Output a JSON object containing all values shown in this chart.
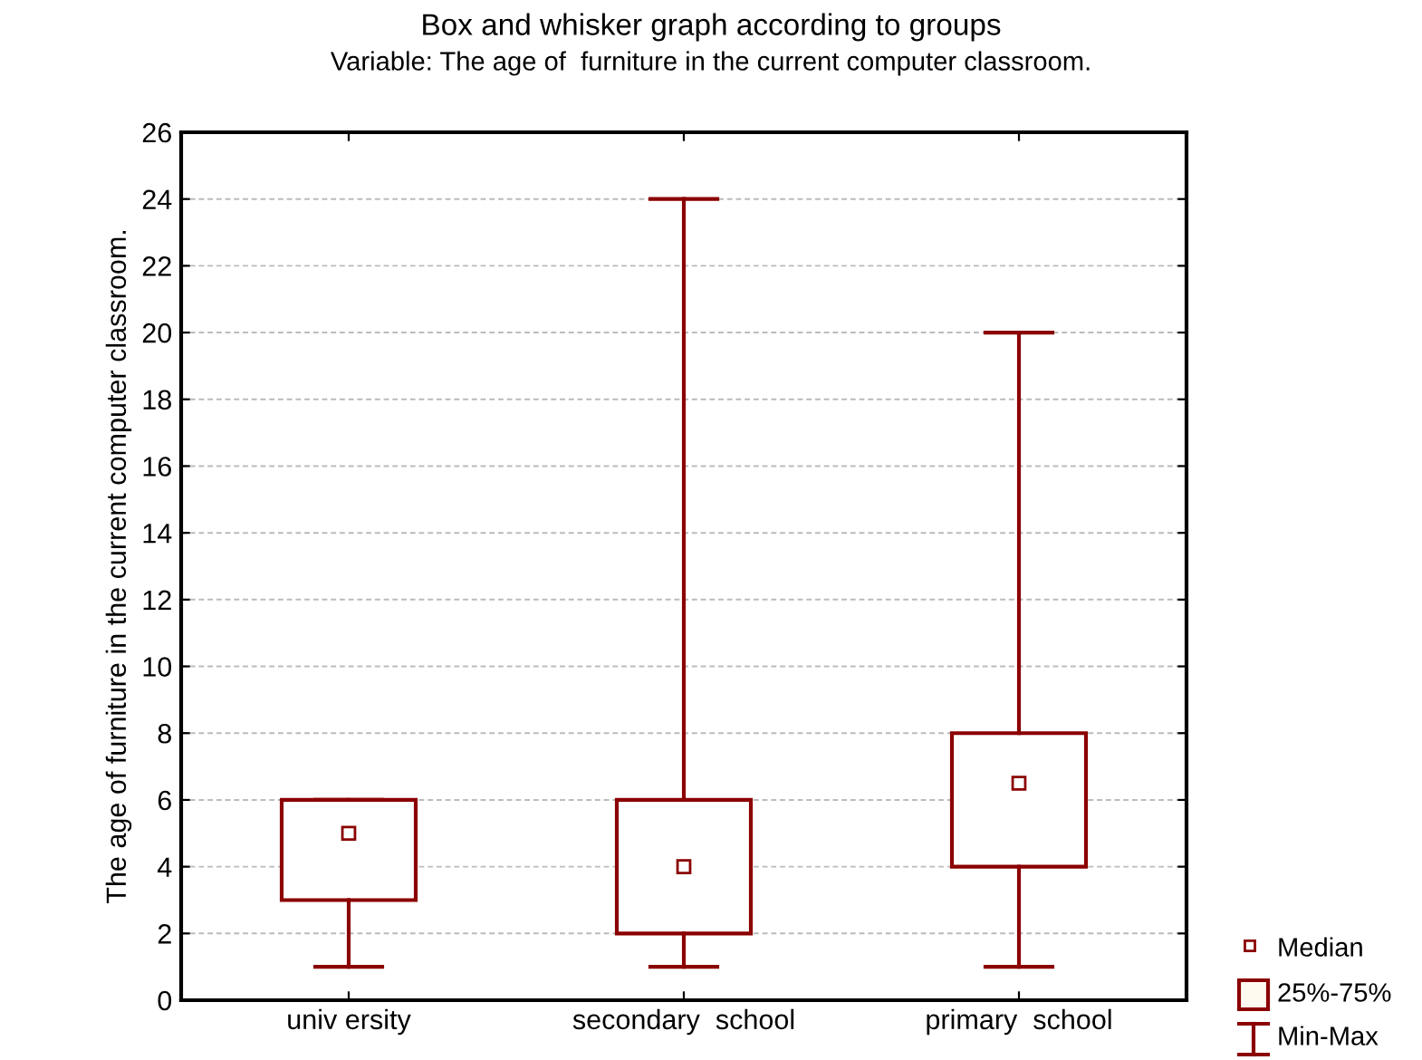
{
  "chart_data": {
    "type": "box",
    "title": "Box and whisker graph according to groups",
    "subtitle": "Variable: The age of  furniture in the current computer classroom.",
    "ylabel": "The age of furniture in the current computer classroom.",
    "categories": [
      "univ ersity",
      "secondary  school",
      "primary  school"
    ],
    "boxes": [
      {
        "low": 1,
        "q1": 3,
        "median": 5,
        "q3": 6,
        "high": 6
      },
      {
        "low": 1,
        "q1": 2,
        "median": 4,
        "q3": 6,
        "high": 24
      },
      {
        "low": 1,
        "q1": 4,
        "median": 6.5,
        "q3": 8,
        "high": 20
      }
    ],
    "color": "#8b0000",
    "ylim": [
      0,
      26
    ],
    "yticks": [
      0,
      2,
      4,
      6,
      8,
      10,
      12,
      14,
      16,
      18,
      20,
      22,
      24,
      26
    ],
    "grid": "y",
    "marker": "square",
    "annotations": [
      "Median",
      "25%-75%",
      "Min-Max"
    ]
  }
}
